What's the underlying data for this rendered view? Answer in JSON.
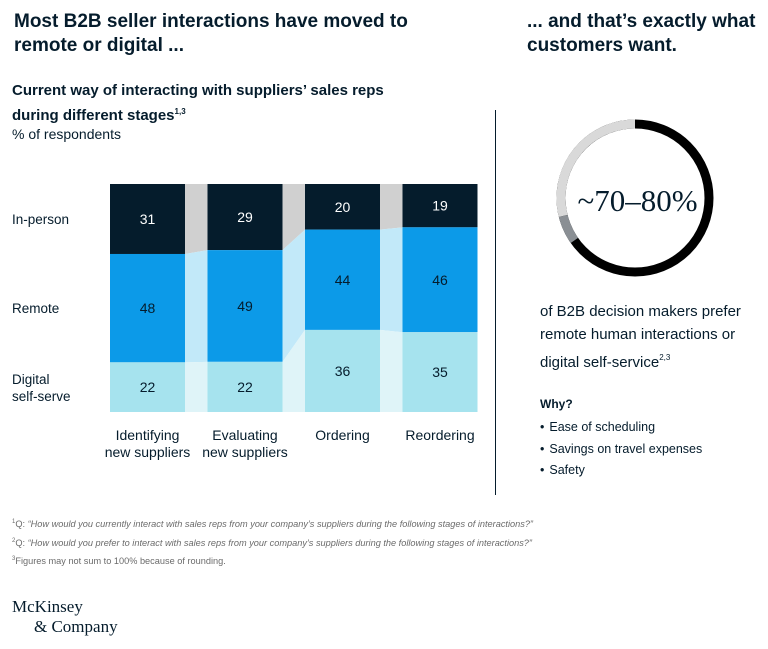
{
  "headline_left": "Most B2B seller interactions have moved to remote or digital ...",
  "headline_right": "... and that’s exactly what customers want.",
  "chart_title": "Current way of interacting with suppliers’ sales reps during different stages",
  "chart_title_sup": "1,3",
  "chart_subtitle": "% of respondents",
  "colors": {
    "in_person": "#051c2c",
    "remote": "#0c9ae8",
    "digital": "#a6e3ee",
    "flow_in_person": "#d0d0d0",
    "flow_remote": "#c2e9f9",
    "flow_digital": "#dff4f8",
    "ring_dark": "#000000",
    "ring_light": "#d9d9d9",
    "ring_mid": "#8a8f94"
  },
  "chart_data": {
    "type": "bar",
    "stacked": true,
    "categories": [
      "Identifying new suppliers",
      "Evaluating new suppliers",
      "Ordering",
      "Reordering"
    ],
    "category_lines": [
      [
        "Identifying",
        "new suppliers"
      ],
      [
        "Evaluating",
        "new suppliers"
      ],
      [
        "Ordering"
      ],
      [
        "Reordering"
      ]
    ],
    "series": [
      {
        "name": "In-person",
        "values": [
          31,
          29,
          20,
          19
        ]
      },
      {
        "name": "Remote",
        "values": [
          48,
          49,
          44,
          46
        ]
      },
      {
        "name": "Digital self-serve",
        "values": [
          22,
          22,
          36,
          35
        ]
      }
    ],
    "series_label_lines": [
      [
        "In-person"
      ],
      [
        "Remote"
      ],
      [
        "Digital",
        "self-serve"
      ]
    ],
    "legend": "left"
  },
  "big_stat": "~70–80%",
  "stat_description": "of B2B decision makers prefer remote human interactions or digital self-service",
  "stat_description_sup": "2,3",
  "why_title": "Why?",
  "why_items": [
    "Ease of scheduling",
    "Savings on travel expenses",
    "Safety"
  ],
  "footnotes": {
    "fn1_num": "1",
    "fn1_prefix": "Q: ",
    "fn1_text": "“How would you currently interact with sales reps from your company’s suppliers during the following stages of interactions?”",
    "fn2_num": "2",
    "fn2_prefix": "Q: ",
    "fn2_text": "“How would you prefer to interact with sales reps from your company’s suppliers during the following stages of interactions?”",
    "fn3_num": "3",
    "fn3_text": "Figures may not sum to 100% because of rounding."
  },
  "logo": {
    "line1": "McKinsey",
    "line2": "& Company"
  }
}
